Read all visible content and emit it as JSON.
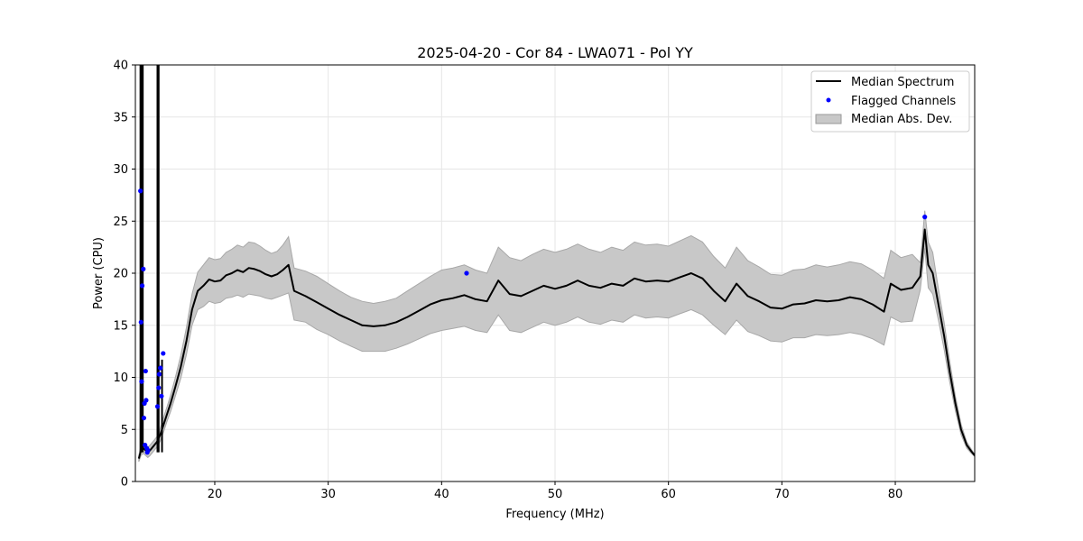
{
  "chart_data": {
    "type": "line",
    "title": "2025-04-20 - Cor 84 - LWA071 - Pol YY",
    "xlabel": "Frequency (MHz)",
    "ylabel": "Power (CPU)",
    "xlim": [
      13,
      87
    ],
    "ylim": [
      0,
      40
    ],
    "xticks": [
      20,
      30,
      40,
      50,
      60,
      70,
      80
    ],
    "yticks": [
      0,
      5,
      10,
      15,
      20,
      25,
      30,
      35,
      40
    ],
    "grid": true,
    "legend": {
      "position": "top-right",
      "entries": [
        {
          "label": "Median Spectrum",
          "kind": "line",
          "color": "#000000"
        },
        {
          "label": "Flagged Channels",
          "kind": "point",
          "color": "#0000ff"
        },
        {
          "label": "Median Abs. Dev.",
          "kind": "band",
          "color": "#c8c8c8"
        }
      ]
    },
    "median_spectrum": {
      "name": "Median Spectrum",
      "color": "#000000",
      "x": [
        13.3,
        13.5,
        13.7,
        13.9,
        14.1,
        14.3,
        14.6,
        14.9,
        15.2,
        15.5,
        15.8,
        16.1,
        16.5,
        17.0,
        17.5,
        18.0,
        18.5,
        19.0,
        19.5,
        20.0,
        20.5,
        21.0,
        21.5,
        22.0,
        22.5,
        23.0,
        23.5,
        24.0,
        24.5,
        25.0,
        25.5,
        26.0,
        26.5,
        27.0,
        28.0,
        29.0,
        30.0,
        31.0,
        32.0,
        33.0,
        34.0,
        35.0,
        36.0,
        37.0,
        38.0,
        39.0,
        40.0,
        41.0,
        42.0,
        43.0,
        44.0,
        45.0,
        46.0,
        47.0,
        48.0,
        49.0,
        50.0,
        51.0,
        52.0,
        53.0,
        54.0,
        55.0,
        56.0,
        57.0,
        58.0,
        59.0,
        60.0,
        61.0,
        62.0,
        63.0,
        64.0,
        65.0,
        66.0,
        67.0,
        68.0,
        69.0,
        70.0,
        71.0,
        72.0,
        73.0,
        74.0,
        75.0,
        76.0,
        77.0,
        78.0,
        79.0,
        79.6,
        80.5,
        81.5,
        82.2,
        82.6,
        82.9,
        83.3,
        83.8,
        84.3,
        84.8,
        85.3,
        85.8,
        86.3,
        86.7,
        87.0
      ],
      "y": [
        2.2,
        3.0,
        3.2,
        3.0,
        2.8,
        3.0,
        3.4,
        3.8,
        4.5,
        5.5,
        6.5,
        7.5,
        9.0,
        11.0,
        13.5,
        16.5,
        18.3,
        18.8,
        19.4,
        19.2,
        19.3,
        19.8,
        20.0,
        20.3,
        20.1,
        20.5,
        20.4,
        20.2,
        19.9,
        19.7,
        19.9,
        20.3,
        20.8,
        18.3,
        17.8,
        17.2,
        16.6,
        16.0,
        15.5,
        15.0,
        14.9,
        15.0,
        15.3,
        15.8,
        16.4,
        17.0,
        17.4,
        17.6,
        17.9,
        17.5,
        17.3,
        19.3,
        18.0,
        17.8,
        18.3,
        18.8,
        18.5,
        18.8,
        19.3,
        18.8,
        18.6,
        19.0,
        18.8,
        19.5,
        19.2,
        19.3,
        19.2,
        19.6,
        20.0,
        19.5,
        18.3,
        17.3,
        19.0,
        17.8,
        17.3,
        16.7,
        16.6,
        17.0,
        17.1,
        17.4,
        17.3,
        17.4,
        17.7,
        17.5,
        17.0,
        16.3,
        19.0,
        18.4,
        18.6,
        19.7,
        24.2,
        20.8,
        20.0,
        17.0,
        14.0,
        10.5,
        7.5,
        5.0,
        3.5,
        2.9,
        2.5
      ]
    },
    "mad_band": {
      "name": "Median Abs. Dev.",
      "color": "#c8c8c8",
      "x": [
        13.3,
        13.5,
        13.7,
        13.9,
        14.1,
        14.3,
        14.6,
        14.9,
        15.2,
        15.5,
        15.8,
        16.1,
        16.5,
        17.0,
        17.5,
        18.0,
        18.5,
        19.0,
        19.5,
        20.0,
        20.5,
        21.0,
        21.5,
        22.0,
        22.5,
        23.0,
        23.5,
        24.0,
        24.5,
        25.0,
        25.5,
        26.0,
        26.5,
        27.0,
        28.0,
        29.0,
        30.0,
        31.0,
        32.0,
        33.0,
        34.0,
        35.0,
        36.0,
        37.0,
        38.0,
        39.0,
        40.0,
        41.0,
        42.0,
        43.0,
        44.0,
        45.0,
        46.0,
        47.0,
        48.0,
        49.0,
        50.0,
        51.0,
        52.0,
        53.0,
        54.0,
        55.0,
        56.0,
        57.0,
        58.0,
        59.0,
        60.0,
        61.0,
        62.0,
        63.0,
        64.0,
        65.0,
        66.0,
        67.0,
        68.0,
        69.0,
        70.0,
        71.0,
        72.0,
        73.0,
        74.0,
        75.0,
        76.0,
        77.0,
        78.0,
        79.0,
        79.6,
        80.5,
        81.5,
        82.2,
        82.6,
        82.9,
        83.3,
        83.8,
        84.3,
        84.8,
        85.3,
        85.8,
        86.3,
        86.7,
        87.0
      ],
      "upper": [
        2.5,
        3.5,
        3.7,
        3.5,
        3.3,
        3.5,
        3.9,
        4.3,
        5.1,
        6.2,
        7.2,
        8.3,
        9.9,
        12.1,
        14.8,
        18.0,
        20.1,
        20.8,
        21.5,
        21.3,
        21.4,
        22.0,
        22.3,
        22.7,
        22.5,
        23.0,
        22.9,
        22.6,
        22.2,
        21.9,
        22.1,
        22.7,
        23.5,
        20.5,
        20.2,
        19.7,
        19.0,
        18.3,
        17.7,
        17.3,
        17.1,
        17.3,
        17.6,
        18.3,
        19.0,
        19.7,
        20.3,
        20.5,
        20.8,
        20.3,
        20.0,
        22.5,
        21.5,
        21.2,
        21.8,
        22.3,
        22.0,
        22.3,
        22.8,
        22.3,
        22.0,
        22.5,
        22.2,
        23.0,
        22.7,
        22.8,
        22.6,
        23.1,
        23.6,
        23.0,
        21.6,
        20.5,
        22.5,
        21.2,
        20.6,
        19.9,
        19.8,
        20.3,
        20.4,
        20.8,
        20.6,
        20.8,
        21.1,
        20.9,
        20.3,
        19.5,
        22.2,
        21.5,
        21.8,
        21.0,
        26.0,
        23.0,
        22.0,
        18.5,
        15.3,
        11.5,
        8.2,
        5.5,
        3.8,
        3.1,
        2.6
      ],
      "lower": [
        1.9,
        2.5,
        2.7,
        2.5,
        2.3,
        2.5,
        2.9,
        3.3,
        3.9,
        4.8,
        5.8,
        6.7,
        8.1,
        9.9,
        12.2,
        15.0,
        16.5,
        16.8,
        17.3,
        17.1,
        17.2,
        17.6,
        17.7,
        17.9,
        17.7,
        18.0,
        17.9,
        17.8,
        17.6,
        17.5,
        17.7,
        17.9,
        18.1,
        15.5,
        15.3,
        14.6,
        14.1,
        13.5,
        13.0,
        12.5,
        12.5,
        12.5,
        12.8,
        13.2,
        13.7,
        14.2,
        14.5,
        14.7,
        14.9,
        14.5,
        14.3,
        16.0,
        14.5,
        14.3,
        14.8,
        15.3,
        15.0,
        15.3,
        15.8,
        15.3,
        15.1,
        15.5,
        15.3,
        16.0,
        15.7,
        15.8,
        15.7,
        16.1,
        16.5,
        16.0,
        15.0,
        14.1,
        15.5,
        14.4,
        14.0,
        13.5,
        13.4,
        13.8,
        13.8,
        14.1,
        14.0,
        14.1,
        14.3,
        14.1,
        13.7,
        13.1,
        15.8,
        15.3,
        15.4,
        18.4,
        22.4,
        18.6,
        18.0,
        15.5,
        12.7,
        9.5,
        6.8,
        4.5,
        3.2,
        2.7,
        2.4
      ]
    },
    "spikes": [
      {
        "x": 13.45,
        "y": 40
      },
      {
        "x": 13.55,
        "y": 40
      },
      {
        "x": 13.65,
        "y": 40
      },
      {
        "x": 14.95,
        "y": 40
      },
      {
        "x": 15.05,
        "y": 40
      },
      {
        "x": 15.35,
        "y": 11.7
      }
    ],
    "flagged_channels": {
      "name": "Flagged Channels",
      "color": "#0000ff",
      "x": [
        13.45,
        13.5,
        13.55,
        13.6,
        13.7,
        13.75,
        13.8,
        13.85,
        13.9,
        13.95,
        14.0,
        14.05,
        14.1,
        14.95,
        15.05,
        15.1,
        15.2,
        15.3,
        15.45,
        42.2,
        82.6
      ],
      "y": [
        27.9,
        15.3,
        9.6,
        18.8,
        20.4,
        6.1,
        7.5,
        3.5,
        10.6,
        7.8,
        3.2,
        2.8,
        3.0,
        7.2,
        9.0,
        10.3,
        10.9,
        8.2,
        12.3,
        20.0,
        25.4
      ]
    }
  }
}
